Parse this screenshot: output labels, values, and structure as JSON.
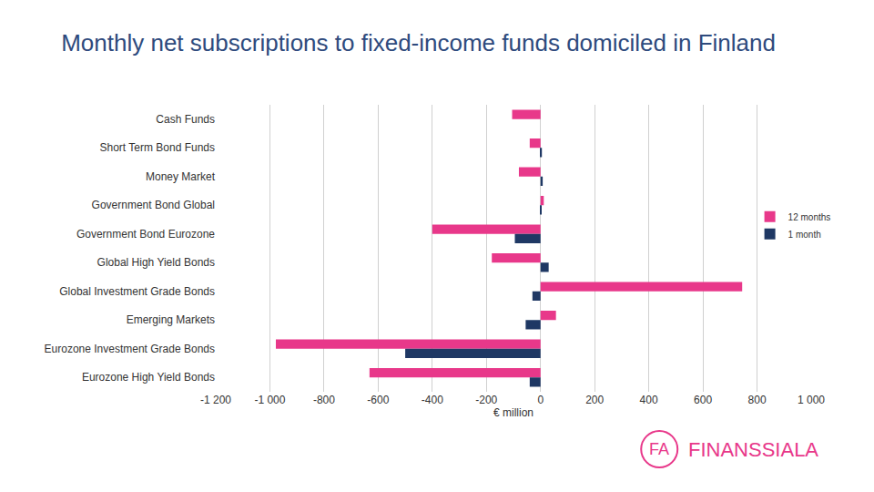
{
  "chart_data": {
    "type": "bar",
    "orientation": "horizontal",
    "title": "Monthly net subscriptions to fixed-income funds domiciled in Finland",
    "xlabel": "€ million",
    "categories": [
      "Cash Funds",
      "Short Term Bond Funds",
      "Money Market",
      "Government Bond Global",
      "Government Bond Eurozone",
      "Global High Yield Bonds",
      "Global Investment Grade Bonds",
      "Emerging Markets",
      "Eurozone Investment Grade Bonds",
      "Eurozone High Yield Bonds"
    ],
    "series": [
      {
        "name": "12 months",
        "color": "#e8388a",
        "values": [
          -105,
          -40,
          -80,
          12,
          -400,
          -180,
          745,
          57,
          -978,
          -632
        ]
      },
      {
        "name": "1 month",
        "color": "#1f3864",
        "values": [
          0,
          5,
          8,
          3,
          -95,
          30,
          -30,
          -55,
          -500,
          -40
        ]
      }
    ],
    "xlim": [
      -1200,
      1000
    ],
    "xticks": [
      {
        "value": -1200,
        "label": "-1 200"
      },
      {
        "value": -1000,
        "label": "-1 000"
      },
      -800,
      -600,
      -400,
      -200,
      0,
      200,
      400,
      600,
      800,
      {
        "value": 1000,
        "label": "1 000"
      }
    ],
    "grid": true,
    "legend": "right",
    "annotations": [
      "FA",
      "FINANSSIALA"
    ]
  }
}
